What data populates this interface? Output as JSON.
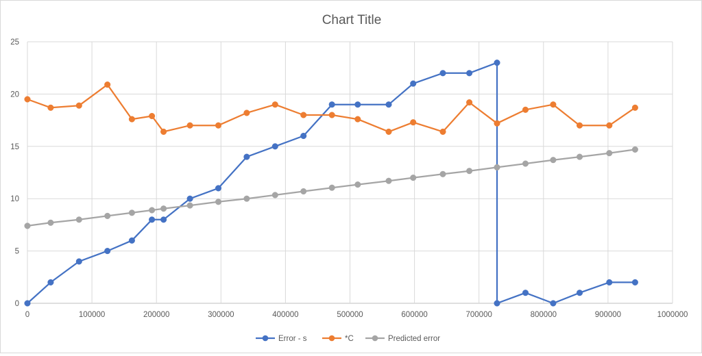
{
  "chart_data": {
    "type": "line",
    "title": "Chart Title",
    "xlabel": "",
    "ylabel": "",
    "xlim": [
      0,
      1000000
    ],
    "ylim": [
      0,
      25
    ],
    "x_ticks": [
      "0",
      "100000",
      "200000",
      "300000",
      "400000",
      "500000",
      "600000",
      "700000",
      "800000",
      "900000",
      "1000000"
    ],
    "y_ticks": [
      "0",
      "5",
      "10",
      "15",
      "20",
      "25"
    ],
    "grid": true,
    "legend_position": "bottom",
    "series": [
      {
        "name": "Error - s",
        "color": "#4472c4",
        "points": [
          [
            0,
            0
          ],
          [
            36000,
            2
          ],
          [
            80000,
            4
          ],
          [
            124000,
            5
          ],
          [
            162000,
            6
          ],
          [
            193000,
            8
          ],
          [
            211000,
            8
          ],
          [
            252000,
            10
          ],
          [
            296000,
            11
          ],
          [
            340000,
            14
          ],
          [
            384000,
            15
          ],
          [
            428000,
            16
          ],
          [
            472000,
            19
          ],
          [
            512000,
            19
          ],
          [
            560000,
            19
          ],
          [
            598000,
            21
          ],
          [
            644000,
            22
          ],
          [
            685000,
            22
          ],
          [
            728000,
            23
          ],
          [
            728000,
            0
          ],
          [
            772000,
            1
          ],
          [
            815000,
            0
          ],
          [
            856000,
            1
          ],
          [
            902000,
            2
          ],
          [
            942000,
            2
          ]
        ]
      },
      {
        "name": "*C",
        "color": "#ed7d31",
        "points": [
          [
            0,
            19.5
          ],
          [
            36000,
            18.7
          ],
          [
            80000,
            18.9
          ],
          [
            124000,
            20.9
          ],
          [
            162000,
            17.6
          ],
          [
            193000,
            17.9
          ],
          [
            211000,
            16.4
          ],
          [
            252000,
            17
          ],
          [
            296000,
            17
          ],
          [
            340000,
            18.2
          ],
          [
            384000,
            19
          ],
          [
            428000,
            18
          ],
          [
            472000,
            18
          ],
          [
            512000,
            17.6
          ],
          [
            560000,
            16.4
          ],
          [
            598000,
            17.3
          ],
          [
            644000,
            16.4
          ],
          [
            685000,
            19.2
          ],
          [
            728000,
            17.2
          ],
          [
            772000,
            18.5
          ],
          [
            815000,
            19
          ],
          [
            856000,
            17
          ],
          [
            902000,
            17
          ],
          [
            942000,
            18.7
          ]
        ]
      },
      {
        "name": "Predicted error",
        "color": "#a5a5a5",
        "points": [
          [
            0,
            7.4
          ],
          [
            36000,
            7.7
          ],
          [
            80000,
            8
          ],
          [
            124000,
            8.35
          ],
          [
            162000,
            8.65
          ],
          [
            193000,
            8.9
          ],
          [
            211000,
            9.05
          ],
          [
            252000,
            9.35
          ],
          [
            296000,
            9.7
          ],
          [
            340000,
            10
          ],
          [
            384000,
            10.35
          ],
          [
            428000,
            10.7
          ],
          [
            472000,
            11.05
          ],
          [
            512000,
            11.35
          ],
          [
            560000,
            11.7
          ],
          [
            598000,
            12
          ],
          [
            644000,
            12.35
          ],
          [
            685000,
            12.65
          ],
          [
            728000,
            13
          ],
          [
            772000,
            13.35
          ],
          [
            815000,
            13.7
          ],
          [
            856000,
            14
          ],
          [
            902000,
            14.35
          ],
          [
            942000,
            14.7
          ]
        ]
      }
    ]
  }
}
